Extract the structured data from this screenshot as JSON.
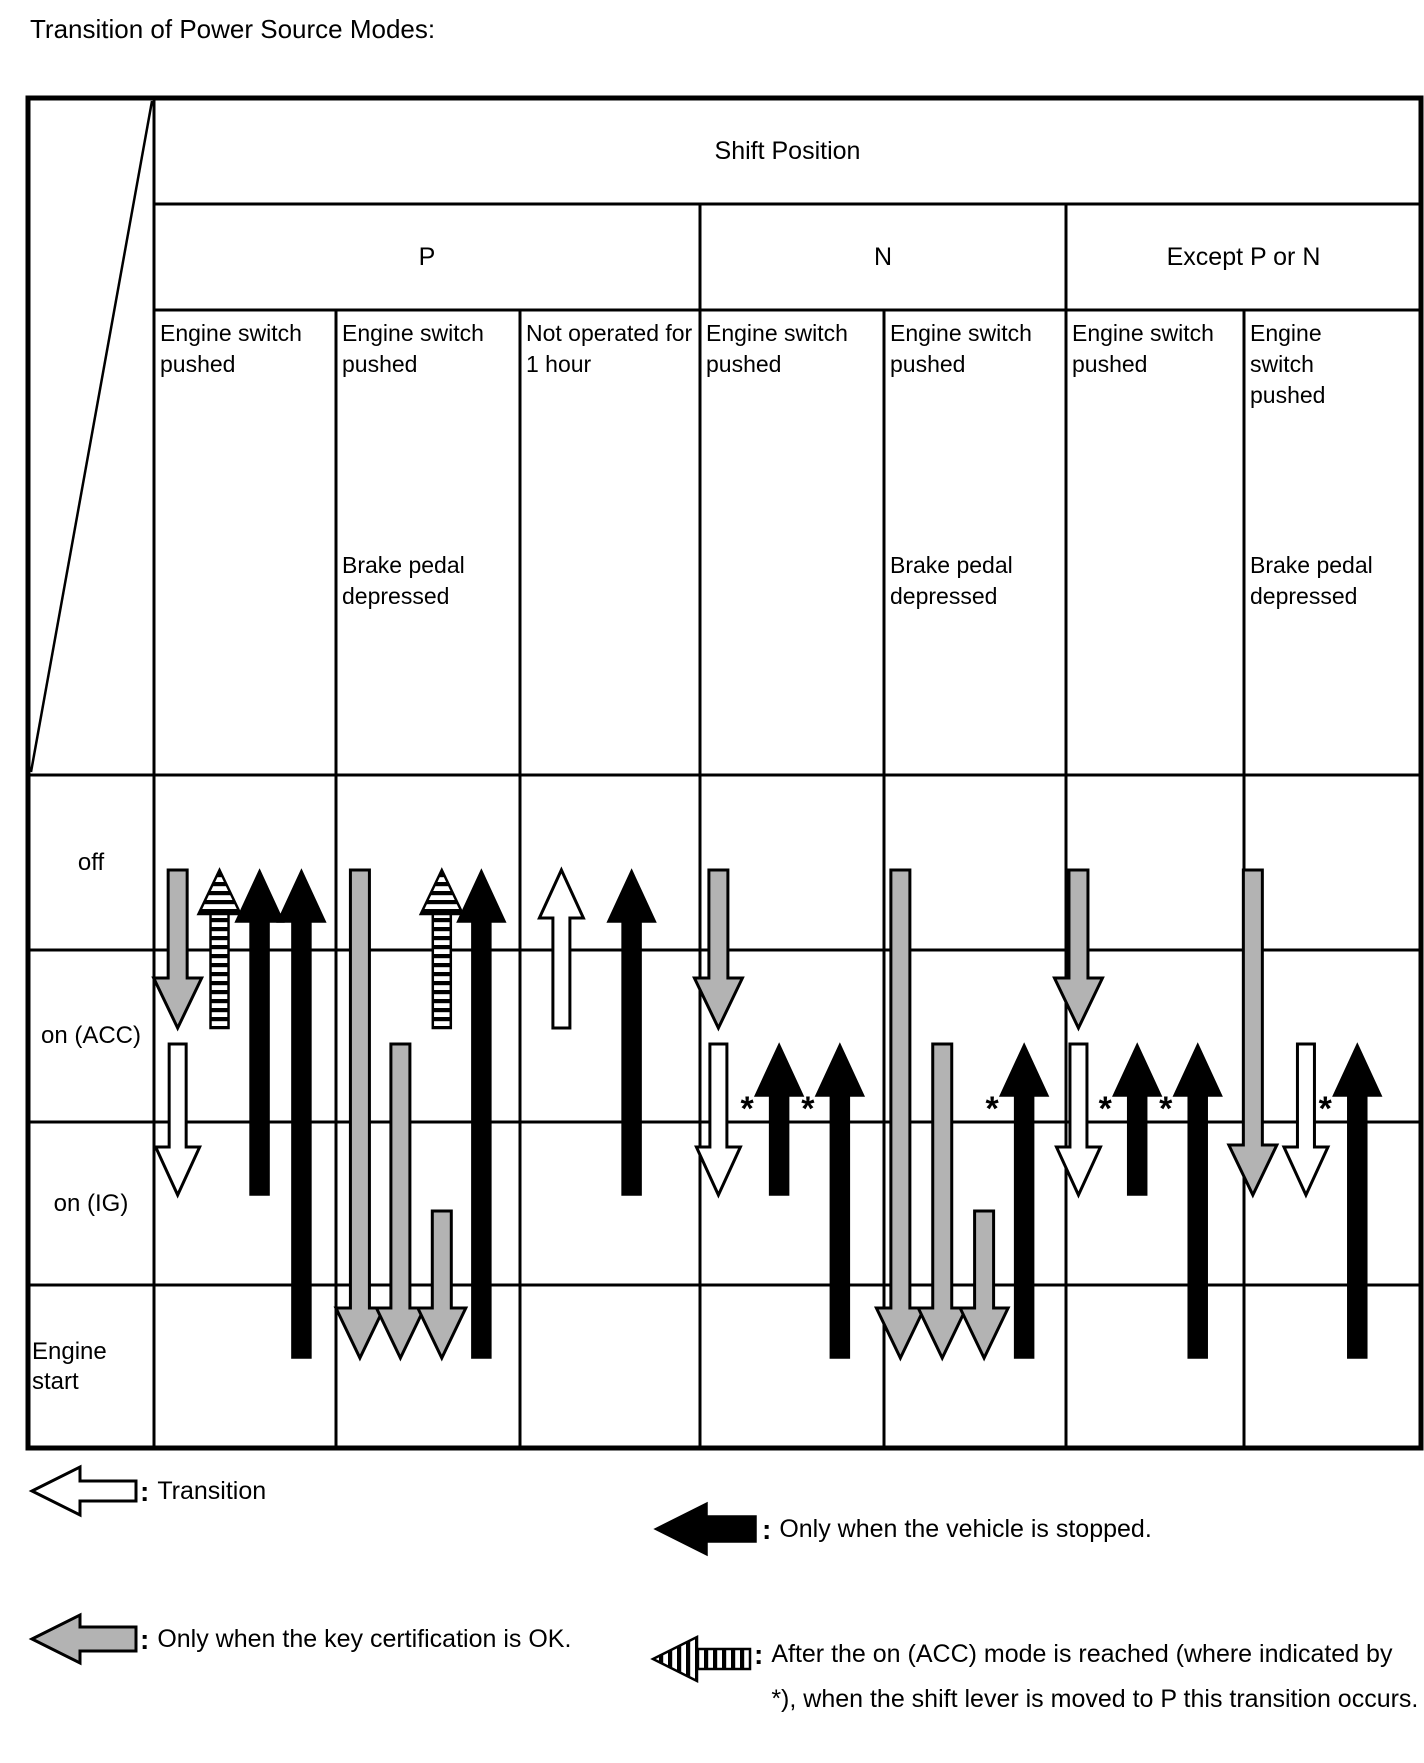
{
  "title": "Transition of Power Source Modes:",
  "colors": {
    "gray": "#b3b3b3",
    "black": "#000000",
    "white": "#ffffff"
  },
  "table": {
    "top_header": "Shift Position",
    "groups": [
      {
        "label": "P"
      },
      {
        "label": "N"
      },
      {
        "label": "Except P or N"
      }
    ],
    "conditions": [
      {
        "line1": "Engine switch pushed",
        "line2": ""
      },
      {
        "line1": "Engine switch pushed",
        "line2": "Brake pedal depressed"
      },
      {
        "line1": "Not operated for 1 hour",
        "line2": ""
      },
      {
        "line1": "Engine switch pushed",
        "line2": ""
      },
      {
        "line1": "Engine switch pushed",
        "line2": "Brake pedal depressed"
      },
      {
        "line1": "Engine switch pushed",
        "line2": ""
      },
      {
        "line1": "Engine switch pushed",
        "line2": "Brake pedal depressed"
      }
    ],
    "rows": [
      {
        "label": "off"
      },
      {
        "label": "on (ACC)"
      },
      {
        "label": "on (IG)"
      },
      {
        "label": "Engine start"
      }
    ]
  },
  "asterisk_symbol": "*",
  "arrows": [
    {
      "col": 1,
      "x": 0.13,
      "type": "gray",
      "dir": "down",
      "from": "off",
      "to": "acc"
    },
    {
      "col": 1,
      "x": 0.13,
      "type": "white",
      "dir": "down",
      "from": "acc",
      "to": "ig"
    },
    {
      "col": 1,
      "x": 0.36,
      "type": "hatched",
      "dir": "up",
      "from": "acc",
      "to": "off"
    },
    {
      "col": 1,
      "x": 0.58,
      "type": "black",
      "dir": "up",
      "from": "ig",
      "to": "off"
    },
    {
      "col": 1,
      "x": 0.81,
      "type": "black",
      "dir": "up",
      "from": "es",
      "to": "off"
    },
    {
      "col": 2,
      "x": 0.13,
      "type": "gray",
      "dir": "down",
      "from": "off",
      "to": "es"
    },
    {
      "col": 2,
      "x": 0.35,
      "type": "gray",
      "dir": "down",
      "from": "acc",
      "to": "es"
    },
    {
      "col": 2,
      "x": 0.575,
      "type": "hatched",
      "dir": "up",
      "from": "acc",
      "to": "off"
    },
    {
      "col": 2,
      "x": 0.575,
      "type": "gray",
      "dir": "down",
      "from": "ig",
      "to": "es"
    },
    {
      "col": 2,
      "x": 0.79,
      "type": "black",
      "dir": "up",
      "from": "es",
      "to": "off"
    },
    {
      "col": 3,
      "x": 0.23,
      "type": "white",
      "dir": "up",
      "from": "acc",
      "to": "off"
    },
    {
      "col": 3,
      "x": 0.62,
      "type": "black",
      "dir": "up",
      "from": "ig",
      "to": "off"
    },
    {
      "col": 4,
      "x": 0.1,
      "type": "gray",
      "dir": "down",
      "from": "off",
      "to": "acc"
    },
    {
      "col": 4,
      "x": 0.1,
      "type": "white",
      "dir": "down",
      "from": "acc",
      "to": "ig"
    },
    {
      "col": 4,
      "x": 0.43,
      "type": "black",
      "dir": "up",
      "from": "ig",
      "to": "acc",
      "star": true
    },
    {
      "col": 4,
      "x": 0.76,
      "type": "black",
      "dir": "up",
      "from": "es",
      "to": "acc",
      "star": true
    },
    {
      "col": 5,
      "x": 0.09,
      "type": "gray",
      "dir": "down",
      "from": "off",
      "to": "es"
    },
    {
      "col": 5,
      "x": 0.32,
      "type": "gray",
      "dir": "down",
      "from": "acc",
      "to": "es"
    },
    {
      "col": 5,
      "x": 0.55,
      "type": "gray",
      "dir": "down",
      "from": "ig",
      "to": "es"
    },
    {
      "col": 5,
      "x": 0.77,
      "type": "black",
      "dir": "up",
      "from": "es",
      "to": "acc",
      "star": true
    },
    {
      "col": 6,
      "x": 0.07,
      "type": "gray",
      "dir": "down",
      "from": "off",
      "to": "acc"
    },
    {
      "col": 6,
      "x": 0.07,
      "type": "white",
      "dir": "down",
      "from": "acc",
      "to": "ig"
    },
    {
      "col": 6,
      "x": 0.4,
      "type": "black",
      "dir": "up",
      "from": "ig",
      "to": "acc",
      "star": true
    },
    {
      "col": 6,
      "x": 0.74,
      "type": "black",
      "dir": "up",
      "from": "es",
      "to": "acc",
      "star": true
    },
    {
      "col": 7,
      "x": 0.05,
      "type": "gray",
      "dir": "down",
      "from": "off",
      "to": "ig"
    },
    {
      "col": 7,
      "x": 0.35,
      "type": "white",
      "dir": "down",
      "from": "acc",
      "to": "ig"
    },
    {
      "col": 7,
      "x": 0.64,
      "type": "black",
      "dir": "up",
      "from": "es",
      "to": "acc",
      "star": true
    }
  ],
  "legend": [
    {
      "type": "white",
      "colon": ":",
      "caption": "Transition"
    },
    {
      "type": "black",
      "colon": ":",
      "caption": "Only when the vehicle is stopped."
    },
    {
      "type": "gray",
      "colon": ":",
      "caption": "Only when the key certification is OK."
    },
    {
      "type": "hatched",
      "colon": ":",
      "caption": "After the on (ACC) mode is reached (where indicated by *), when the shift lever is moved to P this transition occurs."
    }
  ]
}
